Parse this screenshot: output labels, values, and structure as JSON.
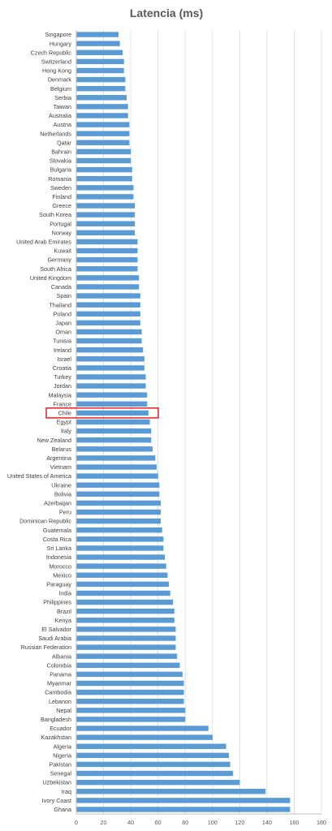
{
  "chart_data": {
    "type": "bar",
    "orientation": "horizontal",
    "title": "Latencia (ms)",
    "xlabel": "",
    "ylabel": "",
    "xlim": [
      0,
      180
    ],
    "xticks": [
      0,
      20,
      40,
      60,
      80,
      100,
      120,
      140,
      160,
      180
    ],
    "grid": true,
    "legend": "none",
    "bar_color": "#5b9bd5",
    "highlight_color": "#e00000",
    "highlighted_category": "Chile",
    "categories": [
      "Singapore",
      "Hungary",
      "Czech Republic",
      "Switzerland",
      "Hong Kong",
      "Denmark",
      "Belgium",
      "Serbia",
      "Taiwan",
      "Australia",
      "Austria",
      "Netherlands",
      "Qatar",
      "Bahrain",
      "Slovakia",
      "Bulgaria",
      "Romania",
      "Sweden",
      "Finland",
      "Greece",
      "South Korea",
      "Portugal",
      "Norway",
      "United Arab Emirates",
      "Kuwait",
      "Germany",
      "South Africa",
      "United Kingdom",
      "Canada",
      "Spain",
      "Thailand",
      "Poland",
      "Japan",
      "Oman",
      "Tunisia",
      "Ireland",
      "Israel",
      "Croatia",
      "Turkey",
      "Jordan",
      "Malaysia",
      "France",
      "Chile",
      "Egypt",
      "Italy",
      "New Zealand",
      "Belarus",
      "Argentina",
      "Vietnam",
      "United States of America",
      "Ukraine",
      "Bolivia",
      "Azerbaijan",
      "Peru",
      "Dominican Republic",
      "Guatemala",
      "Costa Rica",
      "Sri Lanka",
      "Indonesia",
      "Morocco",
      "Mexico",
      "Paraguay",
      "India",
      "Philippines",
      "Brazil",
      "Kenya",
      "El Salvador",
      "Saudi Arabia",
      "Russian Federation",
      "Albania",
      "Colombia",
      "Panama",
      "Myanmar",
      "Cambodia",
      "Lebanon",
      "Nepal",
      "Bangladesh",
      "Ecuador",
      "Kazakhstan",
      "Algeria",
      "Nigeria",
      "Pakistan",
      "Senegal",
      "Uzbekistan",
      "Iraq",
      "Ivory Coast",
      "Ghana"
    ],
    "values": [
      31,
      32,
      34,
      35,
      35,
      36,
      36,
      37,
      38,
      38,
      39,
      39,
      39,
      40,
      40,
      41,
      41,
      42,
      42,
      43,
      43,
      43,
      43,
      45,
      45,
      45,
      45,
      46,
      46,
      47,
      47,
      47,
      47,
      48,
      48,
      49,
      50,
      50,
      51,
      51,
      52,
      52,
      53,
      54,
      55,
      55,
      56,
      58,
      59,
      60,
      61,
      61,
      62,
      62,
      62,
      63,
      64,
      64,
      65,
      66,
      67,
      68,
      69,
      71,
      72,
      72,
      73,
      73,
      73,
      74,
      76,
      78,
      79,
      79,
      79,
      80,
      80,
      97,
      100,
      110,
      112,
      113,
      115,
      120,
      139,
      157,
      157
    ]
  }
}
